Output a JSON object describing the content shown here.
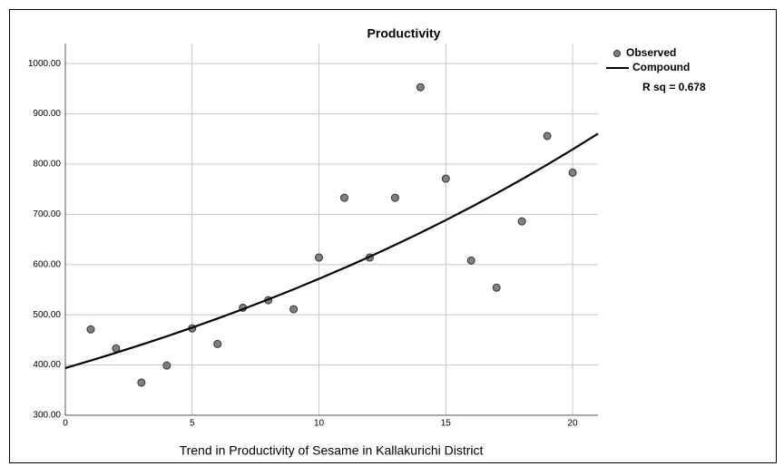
{
  "chart_data": {
    "type": "scatter",
    "title": "Productivity",
    "x_label": "Trend in Productivity of Sesame in Kallakurichi District",
    "annotation": "R sq = 0.678",
    "xlim": [
      0,
      21
    ],
    "xticks": [
      0,
      5,
      10,
      15,
      20
    ],
    "ylim": [
      300,
      1040
    ],
    "yticks": [
      {
        "value": 300,
        "label": "300.00"
      },
      {
        "value": 400,
        "label": "400.00"
      },
      {
        "value": 500,
        "label": "500.00"
      },
      {
        "value": 600,
        "label": "600.00"
      },
      {
        "value": 700,
        "label": "700.00"
      },
      {
        "value": 800,
        "label": "800.00"
      },
      {
        "value": 900,
        "label": "900.00"
      },
      {
        "value": 1000,
        "label": "1000.00"
      }
    ],
    "grid": true,
    "series": [
      {
        "name": "Observed",
        "type": "scatter",
        "color": "#808080",
        "x": [
          1,
          2,
          3,
          4,
          5,
          6,
          7,
          8,
          9,
          10,
          11,
          12,
          13,
          14,
          15,
          16,
          17,
          18,
          19,
          20
        ],
        "values": [
          471,
          433,
          365,
          399,
          473,
          442,
          514,
          529,
          511,
          614,
          733,
          614,
          733,
          953,
          771,
          608,
          554,
          686,
          856,
          783
        ]
      },
      {
        "name": "Compound",
        "type": "line",
        "color": "#000000",
        "x": [
          0,
          1,
          2,
          3,
          4,
          5,
          6,
          7,
          8,
          9,
          10,
          11,
          12,
          13,
          14,
          15,
          16,
          17,
          18,
          19,
          20,
          21
        ],
        "values": [
          394,
          408.9,
          424.4,
          440.5,
          457.2,
          474.5,
          492.5,
          511.2,
          530.6,
          550.7,
          571.6,
          593.2,
          615.7,
          639.1,
          663.3,
          688.4,
          714.5,
          741.6,
          769.7,
          798.9,
          829.2,
          860.6
        ]
      }
    ]
  }
}
